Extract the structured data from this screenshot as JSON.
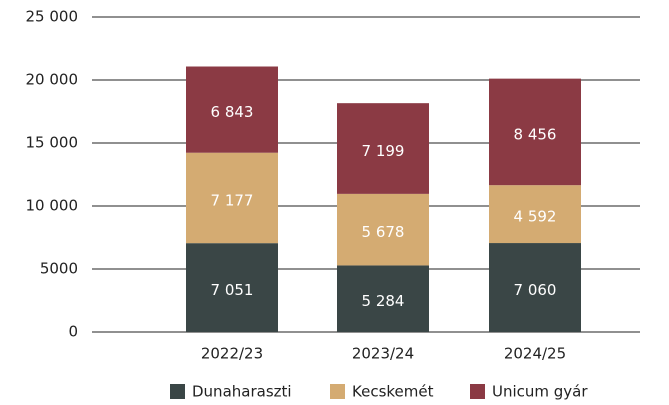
{
  "chart_data": {
    "type": "stacked-bar",
    "categories": [
      "2022/23",
      "2023/24",
      "2024/25"
    ],
    "series": [
      {
        "name": "Dunaharaszti",
        "color": "#3a4646",
        "values": [
          7051,
          5284,
          7060
        ],
        "value_labels": [
          "7 051",
          "5 284",
          "7 060"
        ]
      },
      {
        "name": "Kecskemét",
        "color": "#d4ab72",
        "values": [
          7177,
          5678,
          4592
        ],
        "value_labels": [
          "7 177",
          "5 678",
          "4 592"
        ]
      },
      {
        "name": "Unicum gyár",
        "color": "#8b3a44",
        "values": [
          6843,
          7199,
          8456
        ],
        "value_labels": [
          "6 843",
          "7 199",
          "8 456"
        ]
      }
    ],
    "ylim": [
      0,
      25000
    ],
    "yticks": [
      0,
      5000,
      {
        "value": 10000,
        "label": "10 000"
      },
      {
        "value": 15000,
        "label": "15 000"
      },
      {
        "value": 20000,
        "label": "20 000"
      },
      {
        "value": 25000,
        "label": "25 000"
      }
    ],
    "grid": true
  }
}
